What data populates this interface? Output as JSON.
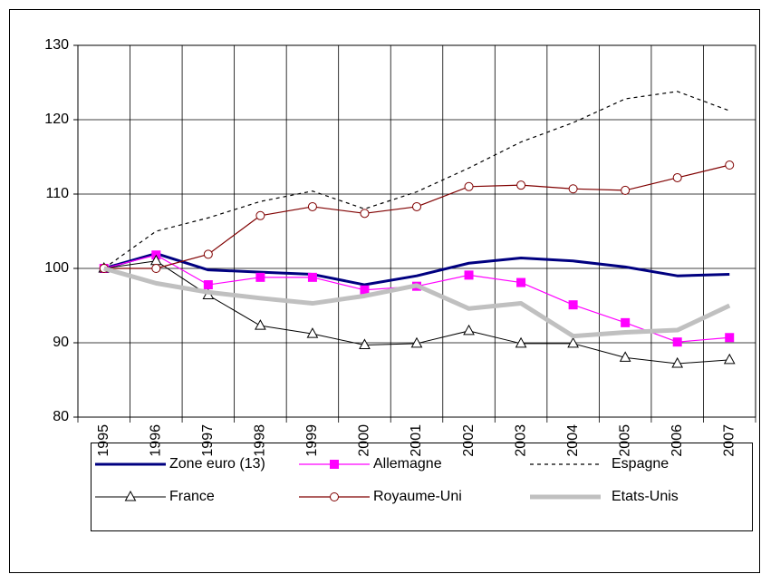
{
  "chart_data": {
    "type": "line",
    "categories": [
      "1995",
      "1996",
      "1997",
      "1998",
      "1999",
      "2000",
      "2001",
      "2002",
      "2003",
      "2004",
      "2005",
      "2006",
      "2007"
    ],
    "ylim": [
      80,
      130
    ],
    "yticks": [
      80,
      90,
      100,
      110,
      120,
      130
    ],
    "grid": true,
    "legend": "bottom",
    "series": [
      {
        "name": "Zone euro (13)",
        "color": "#000080",
        "width": 3,
        "marker": "none",
        "dash": false,
        "values": [
          100,
          102,
          99.8,
          99.5,
          99.2,
          97.8,
          99,
          100.7,
          101.4,
          101,
          100.2,
          99,
          99.2
        ]
      },
      {
        "name": "Allemagne",
        "color": "#ff00ff",
        "width": 1.2,
        "marker": "square",
        "dash": false,
        "values": [
          100,
          101.8,
          97.8,
          98.8,
          98.8,
          97.1,
          97.6,
          99.1,
          98.1,
          95.1,
          92.7,
          90.1,
          90.7
        ]
      },
      {
        "name": "Espagne",
        "color": "#000000",
        "width": 1.2,
        "marker": "none",
        "dash": true,
        "values": [
          100,
          105,
          106.8,
          109,
          110.4,
          108,
          110.3,
          113.5,
          117,
          119.6,
          122.8,
          123.8,
          121.2
        ]
      },
      {
        "name": "France",
        "color": "#000000",
        "width": 1,
        "marker": "triangle",
        "dash": false,
        "values": [
          100,
          101,
          96.4,
          92.3,
          91.2,
          89.7,
          89.9,
          91.6,
          89.9,
          89.9,
          88,
          87.2,
          87.7
        ]
      },
      {
        "name": "Royaume-Uni",
        "color": "#800000",
        "width": 1.2,
        "marker": "circle",
        "dash": false,
        "values": [
          100,
          100,
          101.9,
          107.1,
          108.3,
          107.4,
          108.3,
          111,
          111.2,
          110.7,
          110.5,
          112.2,
          113.9
        ]
      },
      {
        "name": "Etats-Unis",
        "color": "#c0c0c0",
        "width": 5,
        "marker": "none",
        "dash": false,
        "values": [
          100,
          98,
          96.8,
          96,
          95.3,
          96.3,
          97.7,
          94.6,
          95.3,
          90.9,
          91.4,
          91.7,
          95
        ]
      }
    ]
  }
}
